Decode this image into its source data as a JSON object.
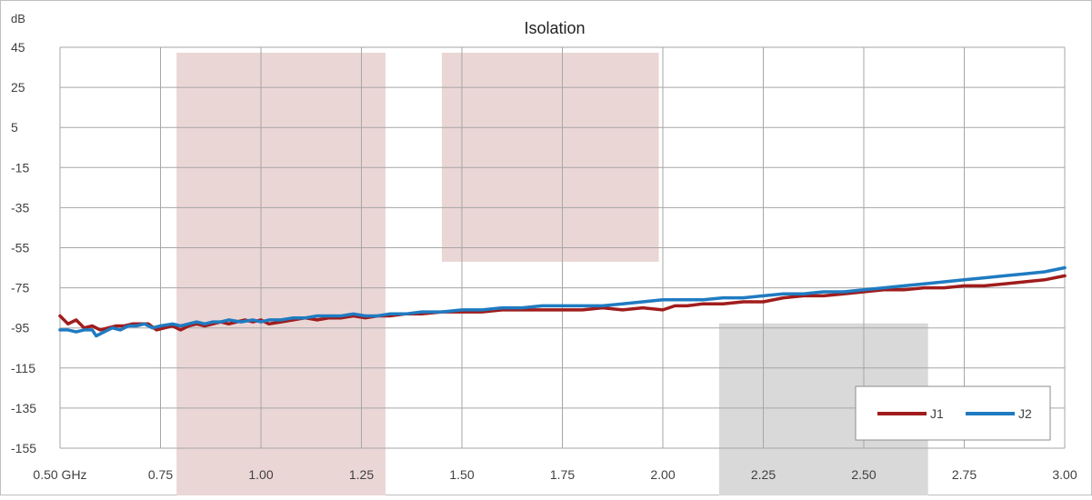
{
  "chart_data": {
    "type": "line",
    "title": "Isolation",
    "ylabel": "dB",
    "xlabel": "",
    "x_ticks": [
      "0.50 GHz",
      "0.75",
      "1.00",
      "1.25",
      "1.50",
      "1.75",
      "2.00",
      "2.25",
      "2.50",
      "2.75",
      "3.00"
    ],
    "y_ticks": [
      "45",
      "25",
      "5",
      "-15",
      "-35",
      "-55",
      "-75",
      "-95",
      "-115",
      "-135",
      "-155"
    ],
    "xlim": [
      0.5,
      3.0
    ],
    "ylim": [
      -155,
      45
    ],
    "grid": true,
    "legend_position": "bottom-right",
    "bands": [
      {
        "x0": 0.79,
        "x1": 1.31,
        "y0": -155,
        "y1": 45,
        "color": "#ebd6d6"
      },
      {
        "x0": 1.45,
        "x1": 1.99,
        "y0": -62,
        "y1": 45,
        "color": "#ebd6d6"
      },
      {
        "x0": 2.14,
        "x1": 2.66,
        "y0": -155,
        "y1": -90,
        "color": "#d9d9d9"
      }
    ],
    "series": [
      {
        "name": "J1",
        "color": "#a01c1c",
        "points": [
          [
            0.5,
            -89
          ],
          [
            0.52,
            -93
          ],
          [
            0.54,
            -91
          ],
          [
            0.56,
            -95
          ],
          [
            0.58,
            -94
          ],
          [
            0.6,
            -96
          ],
          [
            0.62,
            -95
          ],
          [
            0.64,
            -94
          ],
          [
            0.66,
            -94
          ],
          [
            0.68,
            -93
          ],
          [
            0.7,
            -93
          ],
          [
            0.72,
            -93
          ],
          [
            0.74,
            -96
          ],
          [
            0.76,
            -95
          ],
          [
            0.78,
            -94
          ],
          [
            0.8,
            -96
          ],
          [
            0.82,
            -94
          ],
          [
            0.84,
            -93
          ],
          [
            0.86,
            -94
          ],
          [
            0.88,
            -93
          ],
          [
            0.9,
            -92
          ],
          [
            0.92,
            -93
          ],
          [
            0.94,
            -92
          ],
          [
            0.96,
            -91
          ],
          [
            0.98,
            -92
          ],
          [
            1.0,
            -91
          ],
          [
            1.02,
            -93
          ],
          [
            1.05,
            -92
          ],
          [
            1.08,
            -91
          ],
          [
            1.11,
            -90
          ],
          [
            1.14,
            -91
          ],
          [
            1.17,
            -90
          ],
          [
            1.2,
            -90
          ],
          [
            1.23,
            -89
          ],
          [
            1.26,
            -90
          ],
          [
            1.29,
            -89
          ],
          [
            1.32,
            -89
          ],
          [
            1.36,
            -88
          ],
          [
            1.4,
            -88
          ],
          [
            1.45,
            -87
          ],
          [
            1.5,
            -87
          ],
          [
            1.55,
            -87
          ],
          [
            1.6,
            -86
          ],
          [
            1.65,
            -86
          ],
          [
            1.7,
            -86
          ],
          [
            1.75,
            -86
          ],
          [
            1.8,
            -86
          ],
          [
            1.85,
            -85
          ],
          [
            1.9,
            -86
          ],
          [
            1.95,
            -85
          ],
          [
            2.0,
            -86
          ],
          [
            2.03,
            -84
          ],
          [
            2.06,
            -84
          ],
          [
            2.1,
            -83
          ],
          [
            2.15,
            -83
          ],
          [
            2.2,
            -82
          ],
          [
            2.25,
            -82
          ],
          [
            2.3,
            -80
          ],
          [
            2.35,
            -79
          ],
          [
            2.4,
            -79
          ],
          [
            2.45,
            -78
          ],
          [
            2.5,
            -77
          ],
          [
            2.55,
            -76
          ],
          [
            2.6,
            -76
          ],
          [
            2.65,
            -75
          ],
          [
            2.7,
            -75
          ],
          [
            2.75,
            -74
          ],
          [
            2.8,
            -74
          ],
          [
            2.85,
            -73
          ],
          [
            2.9,
            -72
          ],
          [
            2.95,
            -71
          ],
          [
            3.0,
            -69
          ]
        ]
      },
      {
        "name": "J2",
        "color": "#1f7bc1",
        "points": [
          [
            0.5,
            -96
          ],
          [
            0.52,
            -96
          ],
          [
            0.54,
            -97
          ],
          [
            0.56,
            -96
          ],
          [
            0.58,
            -96
          ],
          [
            0.59,
            -99
          ],
          [
            0.61,
            -97
          ],
          [
            0.63,
            -95
          ],
          [
            0.65,
            -96
          ],
          [
            0.67,
            -94
          ],
          [
            0.69,
            -94
          ],
          [
            0.71,
            -93
          ],
          [
            0.73,
            -95
          ],
          [
            0.75,
            -94
          ],
          [
            0.78,
            -93
          ],
          [
            0.8,
            -94
          ],
          [
            0.82,
            -93
          ],
          [
            0.84,
            -92
          ],
          [
            0.86,
            -93
          ],
          [
            0.88,
            -92
          ],
          [
            0.9,
            -92
          ],
          [
            0.92,
            -91
          ],
          [
            0.95,
            -92
          ],
          [
            0.98,
            -91
          ],
          [
            1.0,
            -92
          ],
          [
            1.02,
            -91
          ],
          [
            1.05,
            -91
          ],
          [
            1.08,
            -90
          ],
          [
            1.11,
            -90
          ],
          [
            1.14,
            -89
          ],
          [
            1.17,
            -89
          ],
          [
            1.2,
            -89
          ],
          [
            1.23,
            -88
          ],
          [
            1.26,
            -89
          ],
          [
            1.29,
            -89
          ],
          [
            1.32,
            -88
          ],
          [
            1.36,
            -88
          ],
          [
            1.4,
            -87
          ],
          [
            1.45,
            -87
          ],
          [
            1.5,
            -86
          ],
          [
            1.55,
            -86
          ],
          [
            1.6,
            -85
          ],
          [
            1.65,
            -85
          ],
          [
            1.7,
            -84
          ],
          [
            1.75,
            -84
          ],
          [
            1.8,
            -84
          ],
          [
            1.85,
            -84
          ],
          [
            1.9,
            -83
          ],
          [
            1.95,
            -82
          ],
          [
            2.0,
            -81
          ],
          [
            2.03,
            -81
          ],
          [
            2.06,
            -81
          ],
          [
            2.1,
            -81
          ],
          [
            2.15,
            -80
          ],
          [
            2.2,
            -80
          ],
          [
            2.25,
            -79
          ],
          [
            2.3,
            -78
          ],
          [
            2.35,
            -78
          ],
          [
            2.4,
            -77
          ],
          [
            2.45,
            -77
          ],
          [
            2.5,
            -76
          ],
          [
            2.55,
            -75
          ],
          [
            2.6,
            -74
          ],
          [
            2.65,
            -73
          ],
          [
            2.7,
            -72
          ],
          [
            2.75,
            -71
          ],
          [
            2.8,
            -70
          ],
          [
            2.85,
            -69
          ],
          [
            2.9,
            -68
          ],
          [
            2.95,
            -67
          ],
          [
            3.0,
            -65
          ]
        ]
      }
    ]
  }
}
